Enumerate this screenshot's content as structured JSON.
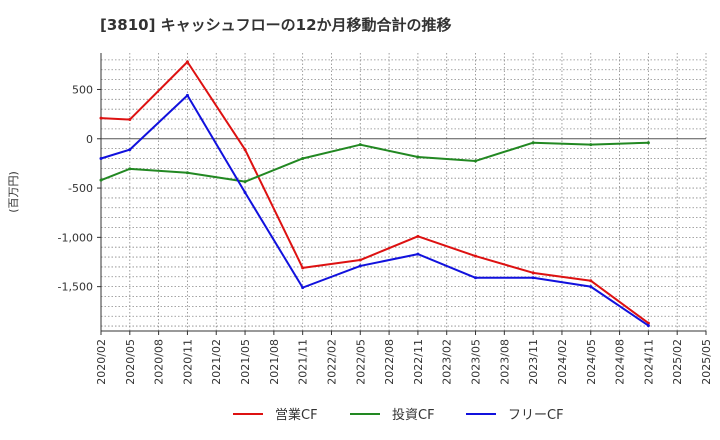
{
  "chart_data": {
    "type": "line",
    "title": "[3810]  キャッシュフローの12か月移動合計の推移",
    "ylabel": "(百万円)",
    "ylim": [
      -1950,
      870
    ],
    "yticks": [
      500,
      0,
      -500,
      -1000,
      -1500
    ],
    "ytick_labels": [
      "500",
      "0",
      "-500",
      "-1,000",
      "-1,500"
    ],
    "x": [
      "2020/02",
      "2020/05",
      "2020/08",
      "2020/11",
      "2021/02",
      "2021/05",
      "2021/08",
      "2021/11",
      "2022/02",
      "2022/05",
      "2022/08",
      "2022/11",
      "2023/02",
      "2023/05",
      "2023/08",
      "2023/11",
      "2024/02",
      "2024/05",
      "2024/08",
      "2024/11",
      "2025/02",
      "2025/05"
    ],
    "series": [
      {
        "name": "営業CF",
        "color": "#dd1111",
        "values": [
          210,
          195,
          null,
          780,
          null,
          -110,
          null,
          -1310,
          null,
          -1230,
          null,
          -990,
          null,
          -1190,
          null,
          -1360,
          null,
          -1440,
          null,
          -1870,
          null,
          null
        ]
      },
      {
        "name": "投資CF",
        "color": "#228822",
        "values": [
          -420,
          -305,
          null,
          -345,
          null,
          -435,
          null,
          -200,
          null,
          -60,
          null,
          -185,
          null,
          -225,
          null,
          -40,
          null,
          -60,
          null,
          -40,
          null,
          null
        ]
      },
      {
        "name": "フリーCF",
        "color": "#1111dd",
        "values": [
          -200,
          -110,
          null,
          440,
          null,
          -545,
          null,
          -1510,
          null,
          -1290,
          null,
          -1170,
          null,
          -1410,
          null,
          -1410,
          null,
          -1500,
          null,
          -1895,
          null,
          null
        ]
      }
    ]
  }
}
